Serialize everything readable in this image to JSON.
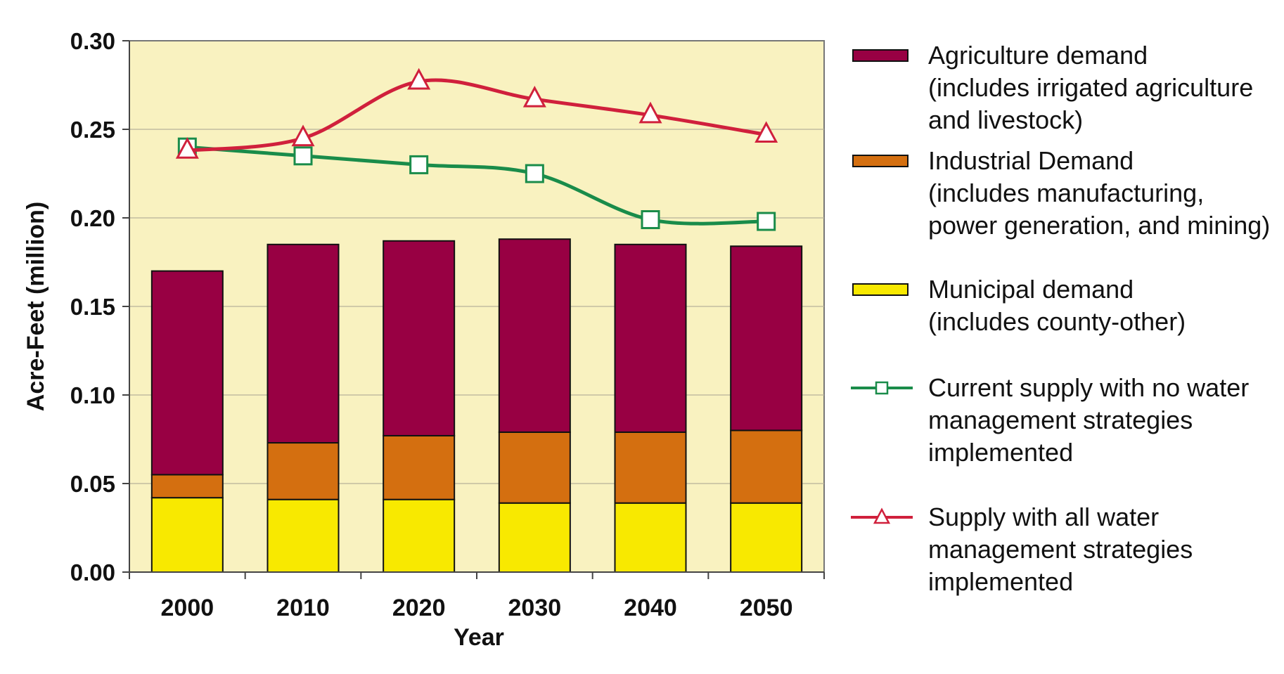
{
  "chart_data": {
    "type": "bar",
    "stacked": true,
    "categories": [
      "2000",
      "2010",
      "2020",
      "2030",
      "2040",
      "2050"
    ],
    "xlabel": "Year",
    "ylabel": "Acre-Feet (million)",
    "ylim": [
      0,
      0.3
    ],
    "yticks": [
      "0.00",
      "0.05",
      "0.10",
      "0.15",
      "0.20",
      "0.25",
      "0.30"
    ],
    "grid": true,
    "plot_background": "#f9f2c0",
    "legend_position": "right",
    "series": [
      {
        "name": "Municipal demand (includes county-other)",
        "type": "bar",
        "color": "#f8e900",
        "values": [
          0.042,
          0.041,
          0.041,
          0.039,
          0.039,
          0.039
        ]
      },
      {
        "name": "Industrial Demand (includes manufacturing, power generation, and mining)",
        "type": "bar",
        "color": "#d46f10",
        "values": [
          0.013,
          0.032,
          0.036,
          0.04,
          0.04,
          0.041
        ]
      },
      {
        "name": "Agriculture demand (includes irrigated agriculture and livestock)",
        "type": "bar",
        "color": "#980043",
        "values": [
          0.115,
          0.112,
          0.11,
          0.109,
          0.106,
          0.104
        ]
      },
      {
        "name": "Current supply with no water management strategies implemented",
        "type": "line",
        "marker": "square",
        "color": "#1a8c4a",
        "values": [
          0.24,
          0.235,
          0.23,
          0.225,
          0.199,
          0.198
        ]
      },
      {
        "name": "Supply with all water management strategies implemented",
        "type": "line",
        "marker": "triangle",
        "color": "#d0203c",
        "values": [
          0.238,
          0.245,
          0.277,
          0.267,
          0.258,
          0.247
        ]
      }
    ]
  },
  "legend": [
    {
      "lines": [
        "Agriculture demand",
        "(includes irrigated agriculture",
        "and livestock)"
      ],
      "key": "swatch",
      "color": "#980043"
    },
    {
      "lines": [
        "Industrial Demand",
        "(includes manufacturing,",
        "power generation, and mining)"
      ],
      "key": "swatch",
      "color": "#d46f10"
    },
    {
      "lines": [
        "Municipal demand",
        "(includes county-other)"
      ],
      "key": "swatch",
      "color": "#f8e900"
    },
    {
      "lines": [
        "Current supply with no water",
        "management strategies",
        "implemented"
      ],
      "key": "square-line",
      "color": "#1a8c4a"
    },
    {
      "lines": [
        "Supply with all water",
        "management strategies",
        "implemented"
      ],
      "key": "triangle-line",
      "color": "#d0203c"
    }
  ]
}
